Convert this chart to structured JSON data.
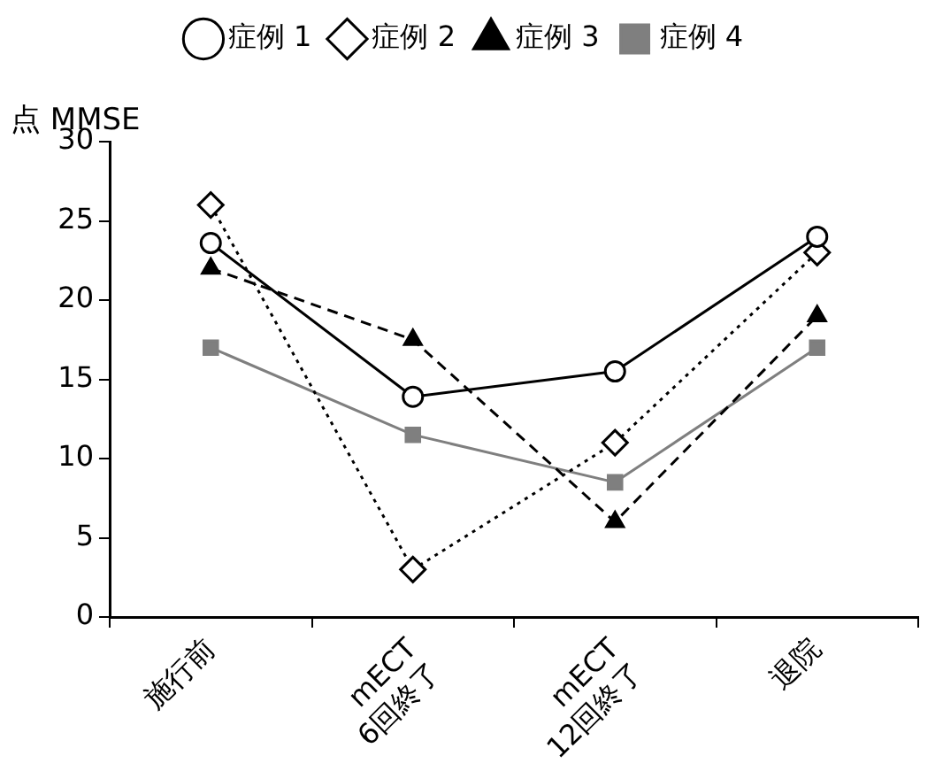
{
  "chart_data": {
    "type": "line",
    "ylabel": "点 MMSE",
    "categories": [
      "施行前",
      "mECT\n6回終了",
      "mECT\n12回終了",
      "退院"
    ],
    "series": [
      {
        "name": "症例 1",
        "color": "#000000",
        "marker": "circle",
        "line_style": "solid",
        "values": [
          23.6,
          13.9,
          15.5,
          24
        ]
      },
      {
        "name": "症例 2",
        "color": "#000000",
        "marker": "diamond",
        "line_style": "dotted",
        "values": [
          26,
          3,
          11,
          23
        ]
      },
      {
        "name": "症例 3",
        "color": "#000000",
        "marker": "triangle",
        "line_style": "dashed",
        "values": [
          22,
          17.5,
          6,
          19
        ]
      },
      {
        "name": "症例 4",
        "color": "#7f7f7f",
        "marker": "square",
        "line_style": "solid",
        "values": [
          17,
          11.5,
          8.5,
          17
        ]
      }
    ],
    "ylim": [
      0,
      30
    ],
    "yticks": [
      0,
      5,
      10,
      15,
      20,
      25,
      30
    ],
    "grid": false,
    "legend": "top"
  }
}
